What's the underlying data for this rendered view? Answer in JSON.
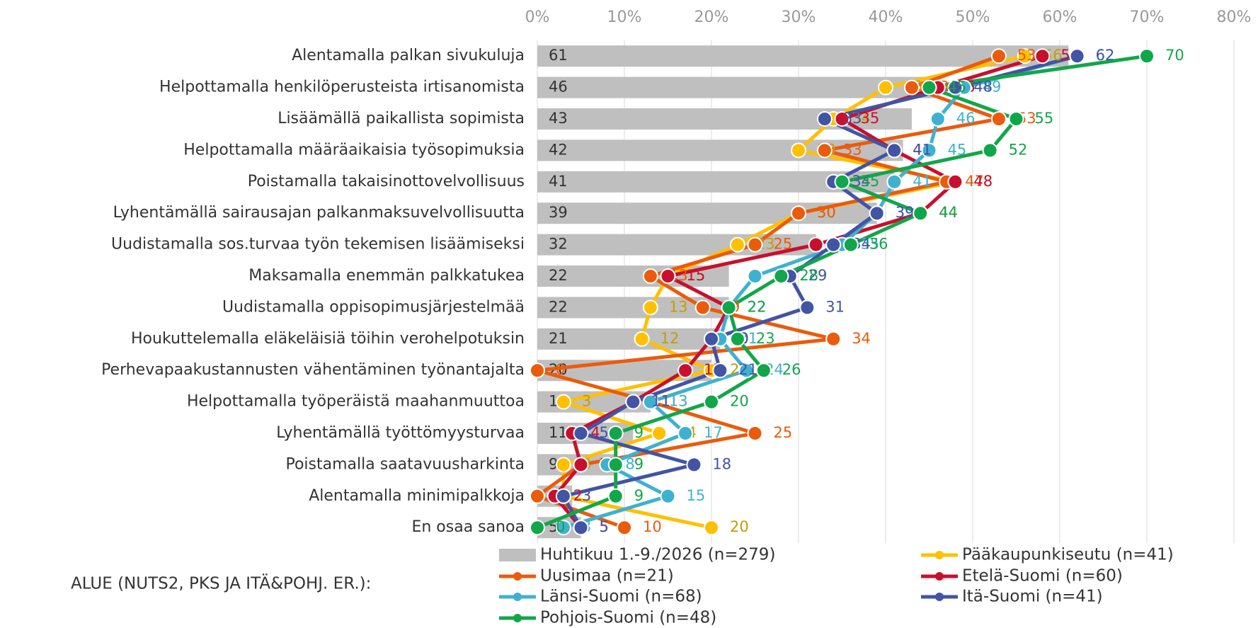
{
  "chart_data": {
    "type": "bar",
    "categories": [
      "Alentamalla palkan sivukuluja",
      "Helpottamalla henkilöperusteista irtisanomista",
      "Lisäämällä paikallista sopimista",
      "Helpottamalla määräaikaisia työsopimuksia",
      "Poistamalla takaisinottovelvollisuus",
      "Lyhentämällä sairausajan palkanmaksuvelvollisuutta",
      "Uudistamalla sos.turvaa työn tekemisen lisäämiseksi",
      "Maksamalla enemmän palkkatukea",
      "Uudistamalla oppisopimusjärjestelmää",
      "Houkuttelemalla eläkeläisiä töihin verohelpotuksin",
      "Perhevapaakustannusten vähentäminen työnantajalta",
      "Helpottamalla työperäistä maahanmuuttoa",
      "Lyhentämällä työttömyysturvaa",
      "Poistamalla saatavuusharkinta",
      "Alentamalla minimipalkkoja",
      "En osaa sanoa"
    ],
    "xlim": [
      0,
      80
    ],
    "xticks": [
      {
        "value": 0,
        "label": "0%"
      },
      {
        "value": 10,
        "label": "10%"
      },
      {
        "value": 20,
        "label": "20%"
      },
      {
        "value": 30,
        "label": "30%"
      },
      {
        "value": 40,
        "label": "40%"
      },
      {
        "value": 50,
        "label": "50%"
      },
      {
        "value": 60,
        "label": "60%"
      },
      {
        "value": 70,
        "label": "70%"
      },
      {
        "value": 80,
        "label": "80%"
      }
    ],
    "grid": true,
    "legend_title": "ALUE (NUTS2, PKS JA ITÄ&POHJ. ER.):",
    "series": [
      {
        "name": "Huhtikuu 1.-9./2026 (n=279)",
        "type": "bar",
        "color": "#bfbfbf",
        "label_color": "#333333",
        "values": [
          61,
          46,
          43,
          42,
          41,
          39,
          32,
          22,
          22,
          21,
          20,
          13,
          11,
          9,
          4,
          5
        ]
      },
      {
        "name": "Pääkaupunkiseutu (n=41)",
        "type": "line",
        "color": "#ffc000",
        "label_color": "#c89b00",
        "values": [
          56,
          40,
          34,
          30,
          48,
          30,
          23,
          15,
          13,
          12,
          20,
          3,
          14,
          3,
          3,
          20
        ]
      },
      {
        "name": "Uusimaa (n=21)",
        "type": "line",
        "color": "#ea5b0c",
        "label_color": "#ea5b0c",
        "values": [
          53,
          43,
          53,
          33,
          47,
          30,
          25,
          13,
          19,
          34,
          0,
          13,
          25,
          5,
          0,
          10
        ]
      },
      {
        "name": "Etelä-Suomi (n=60)",
        "type": "line",
        "color": "#c8102e",
        "label_color": "#c8102e",
        "values": [
          58,
          46,
          35,
          41,
          48,
          44,
          32,
          15,
          22,
          20,
          17,
          11,
          4,
          5,
          2,
          5
        ]
      },
      {
        "name": "Länsi-Suomi (n=68)",
        "type": "line",
        "color": "#3fb1d0",
        "label_color": "#3fb1d0",
        "values": [
          62,
          49,
          46,
          45,
          41,
          39,
          35,
          25,
          22,
          21,
          24,
          13,
          17,
          8,
          15,
          3
        ]
      },
      {
        "name": "Itä-Suomi (n=41)",
        "type": "line",
        "color": "#4254a4",
        "label_color": "#4254a4",
        "values": [
          62,
          48,
          33,
          41,
          34,
          39,
          34,
          29,
          31,
          20,
          21,
          11,
          5,
          18,
          3,
          5
        ]
      },
      {
        "name": "Pohjois-Suomi (n=48)",
        "type": "line",
        "color": "#12a64a",
        "label_color": "#12a64a",
        "values": [
          70,
          45,
          55,
          52,
          35,
          44,
          36,
          28,
          22,
          23,
          26,
          20,
          9,
          9,
          9,
          0
        ]
      }
    ]
  }
}
